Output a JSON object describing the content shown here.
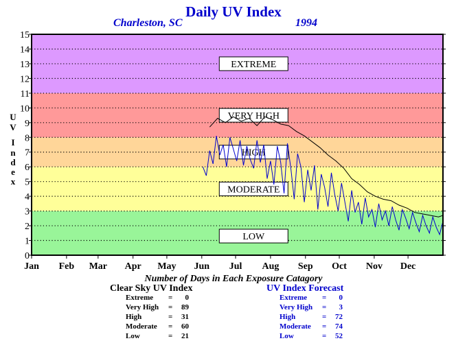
{
  "chart_data": {
    "type": "line",
    "title": "Daily UV Index",
    "subtitle_location": "Charleston, SC",
    "subtitle_year": "1994",
    "ylabel": "U V I n d e x",
    "ylim": [
      0,
      15
    ],
    "yticks": [
      "0",
      "1",
      "2",
      "3",
      "4",
      "5",
      "6",
      "7",
      "8",
      "9",
      "10",
      "11",
      "12",
      "13",
      "14",
      "15"
    ],
    "xlim": [
      0,
      365
    ],
    "x_tick_labels": [
      "Jan",
      "Feb",
      "Mar",
      "Apr",
      "May",
      "Jun",
      "Jul",
      "Aug",
      "Sep",
      "Oct",
      "Nov",
      "Dec"
    ],
    "x_tick_days": [
      0,
      31,
      59,
      90,
      120,
      151,
      181,
      212,
      243,
      273,
      304,
      334
    ],
    "grid": true,
    "bands": [
      {
        "label": "LOW",
        "from": 0,
        "to": 3,
        "color": "#99f599",
        "label_y": 1.3
      },
      {
        "label": "MODERATE",
        "from": 3,
        "to": 6,
        "color": "#ffff99",
        "label_y": 4.5
      },
      {
        "label": "HIGH",
        "from": 6,
        "to": 8,
        "color": "#ffd699",
        "label_y": 7
      },
      {
        "label": "VERY HIGH",
        "from": 8,
        "to": 11,
        "color": "#ff9999",
        "label_y": 9.5
      },
      {
        "label": "EXTREME",
        "from": 11,
        "to": 15,
        "color": "#dd99ff",
        "label_y": 13
      }
    ],
    "series": [
      {
        "line_color": "#000000",
        "days": [
          158,
          165,
          172,
          179,
          186,
          193,
          200,
          207,
          214,
          221,
          228,
          235,
          242,
          249,
          256,
          263,
          270,
          277,
          284,
          291,
          298,
          305,
          312,
          319,
          326,
          333,
          340,
          347,
          354,
          361,
          365
        ],
        "values": [
          8.7,
          9.3,
          9.0,
          9.4,
          9.1,
          9.3,
          8.8,
          9.4,
          9.2,
          8.9,
          8.8,
          8.4,
          8.1,
          7.7,
          7.3,
          6.8,
          6.4,
          5.9,
          5.2,
          4.8,
          4.3,
          4.0,
          3.8,
          3.7,
          3.4,
          3.2,
          2.9,
          2.8,
          2.7,
          2.6,
          2.7
        ]
      },
      {
        "line_color": "#0000cc",
        "days": [
          152,
          155,
          158,
          161,
          164,
          167,
          170,
          173,
          176,
          179,
          182,
          185,
          188,
          191,
          194,
          197,
          200,
          203,
          206,
          209,
          212,
          215,
          218,
          221,
          224,
          227,
          230,
          233,
          236,
          239,
          242,
          245,
          248,
          251,
          254,
          257,
          260,
          263,
          266,
          269,
          272,
          275,
          278,
          281,
          284,
          287,
          290,
          293,
          296,
          299,
          302,
          305,
          308,
          311,
          314,
          317,
          320,
          323,
          326,
          329,
          332,
          335,
          338,
          341,
          344,
          347,
          350,
          353,
          356,
          359,
          362,
          365
        ],
        "values": [
          6.0,
          5.4,
          7.1,
          6.2,
          8.1,
          6.8,
          7.5,
          6.0,
          8.0,
          7.2,
          6.4,
          7.8,
          6.1,
          7.4,
          6.5,
          5.9,
          7.8,
          6.3,
          7.5,
          5.2,
          6.4,
          4.8,
          7.4,
          6.3,
          4.2,
          7.6,
          5.9,
          3.8,
          6.9,
          6.0,
          3.6,
          5.8,
          4.4,
          6.1,
          3.1,
          5.5,
          4.6,
          3.3,
          5.6,
          4.1,
          3.0,
          4.9,
          3.6,
          2.3,
          4.4,
          2.9,
          3.6,
          2.1,
          3.9,
          2.6,
          3.1,
          1.9,
          3.5,
          2.4,
          3.0,
          2.0,
          3.3,
          2.4,
          1.7,
          3.1,
          2.5,
          1.8,
          2.9,
          2.2,
          1.6,
          2.7,
          2.0,
          1.5,
          2.6,
          1.9,
          1.4,
          2.3
        ]
      }
    ]
  },
  "stats": {
    "caption": "Number of Days in Each Exposure Catagory",
    "clear_sky": {
      "heading": "Clear Sky UV Index",
      "rows": [
        {
          "label": "Extreme",
          "value": "0"
        },
        {
          "label": "Very High",
          "value": "89"
        },
        {
          "label": "High",
          "value": "31"
        },
        {
          "label": "Moderate",
          "value": "60"
        },
        {
          "label": "Low",
          "value": "21"
        }
      ]
    },
    "forecast": {
      "heading": "UV Index Forecast",
      "rows": [
        {
          "label": "Extreme",
          "value": "0"
        },
        {
          "label": "Very High",
          "value": "3"
        },
        {
          "label": "High",
          "value": "72"
        },
        {
          "label": "Moderate",
          "value": "74"
        },
        {
          "label": "Low",
          "value": "52"
        }
      ]
    }
  },
  "colors": {
    "title": "#0000cc",
    "forecast_text": "#0000cc",
    "clear_sky_text": "#000000"
  }
}
